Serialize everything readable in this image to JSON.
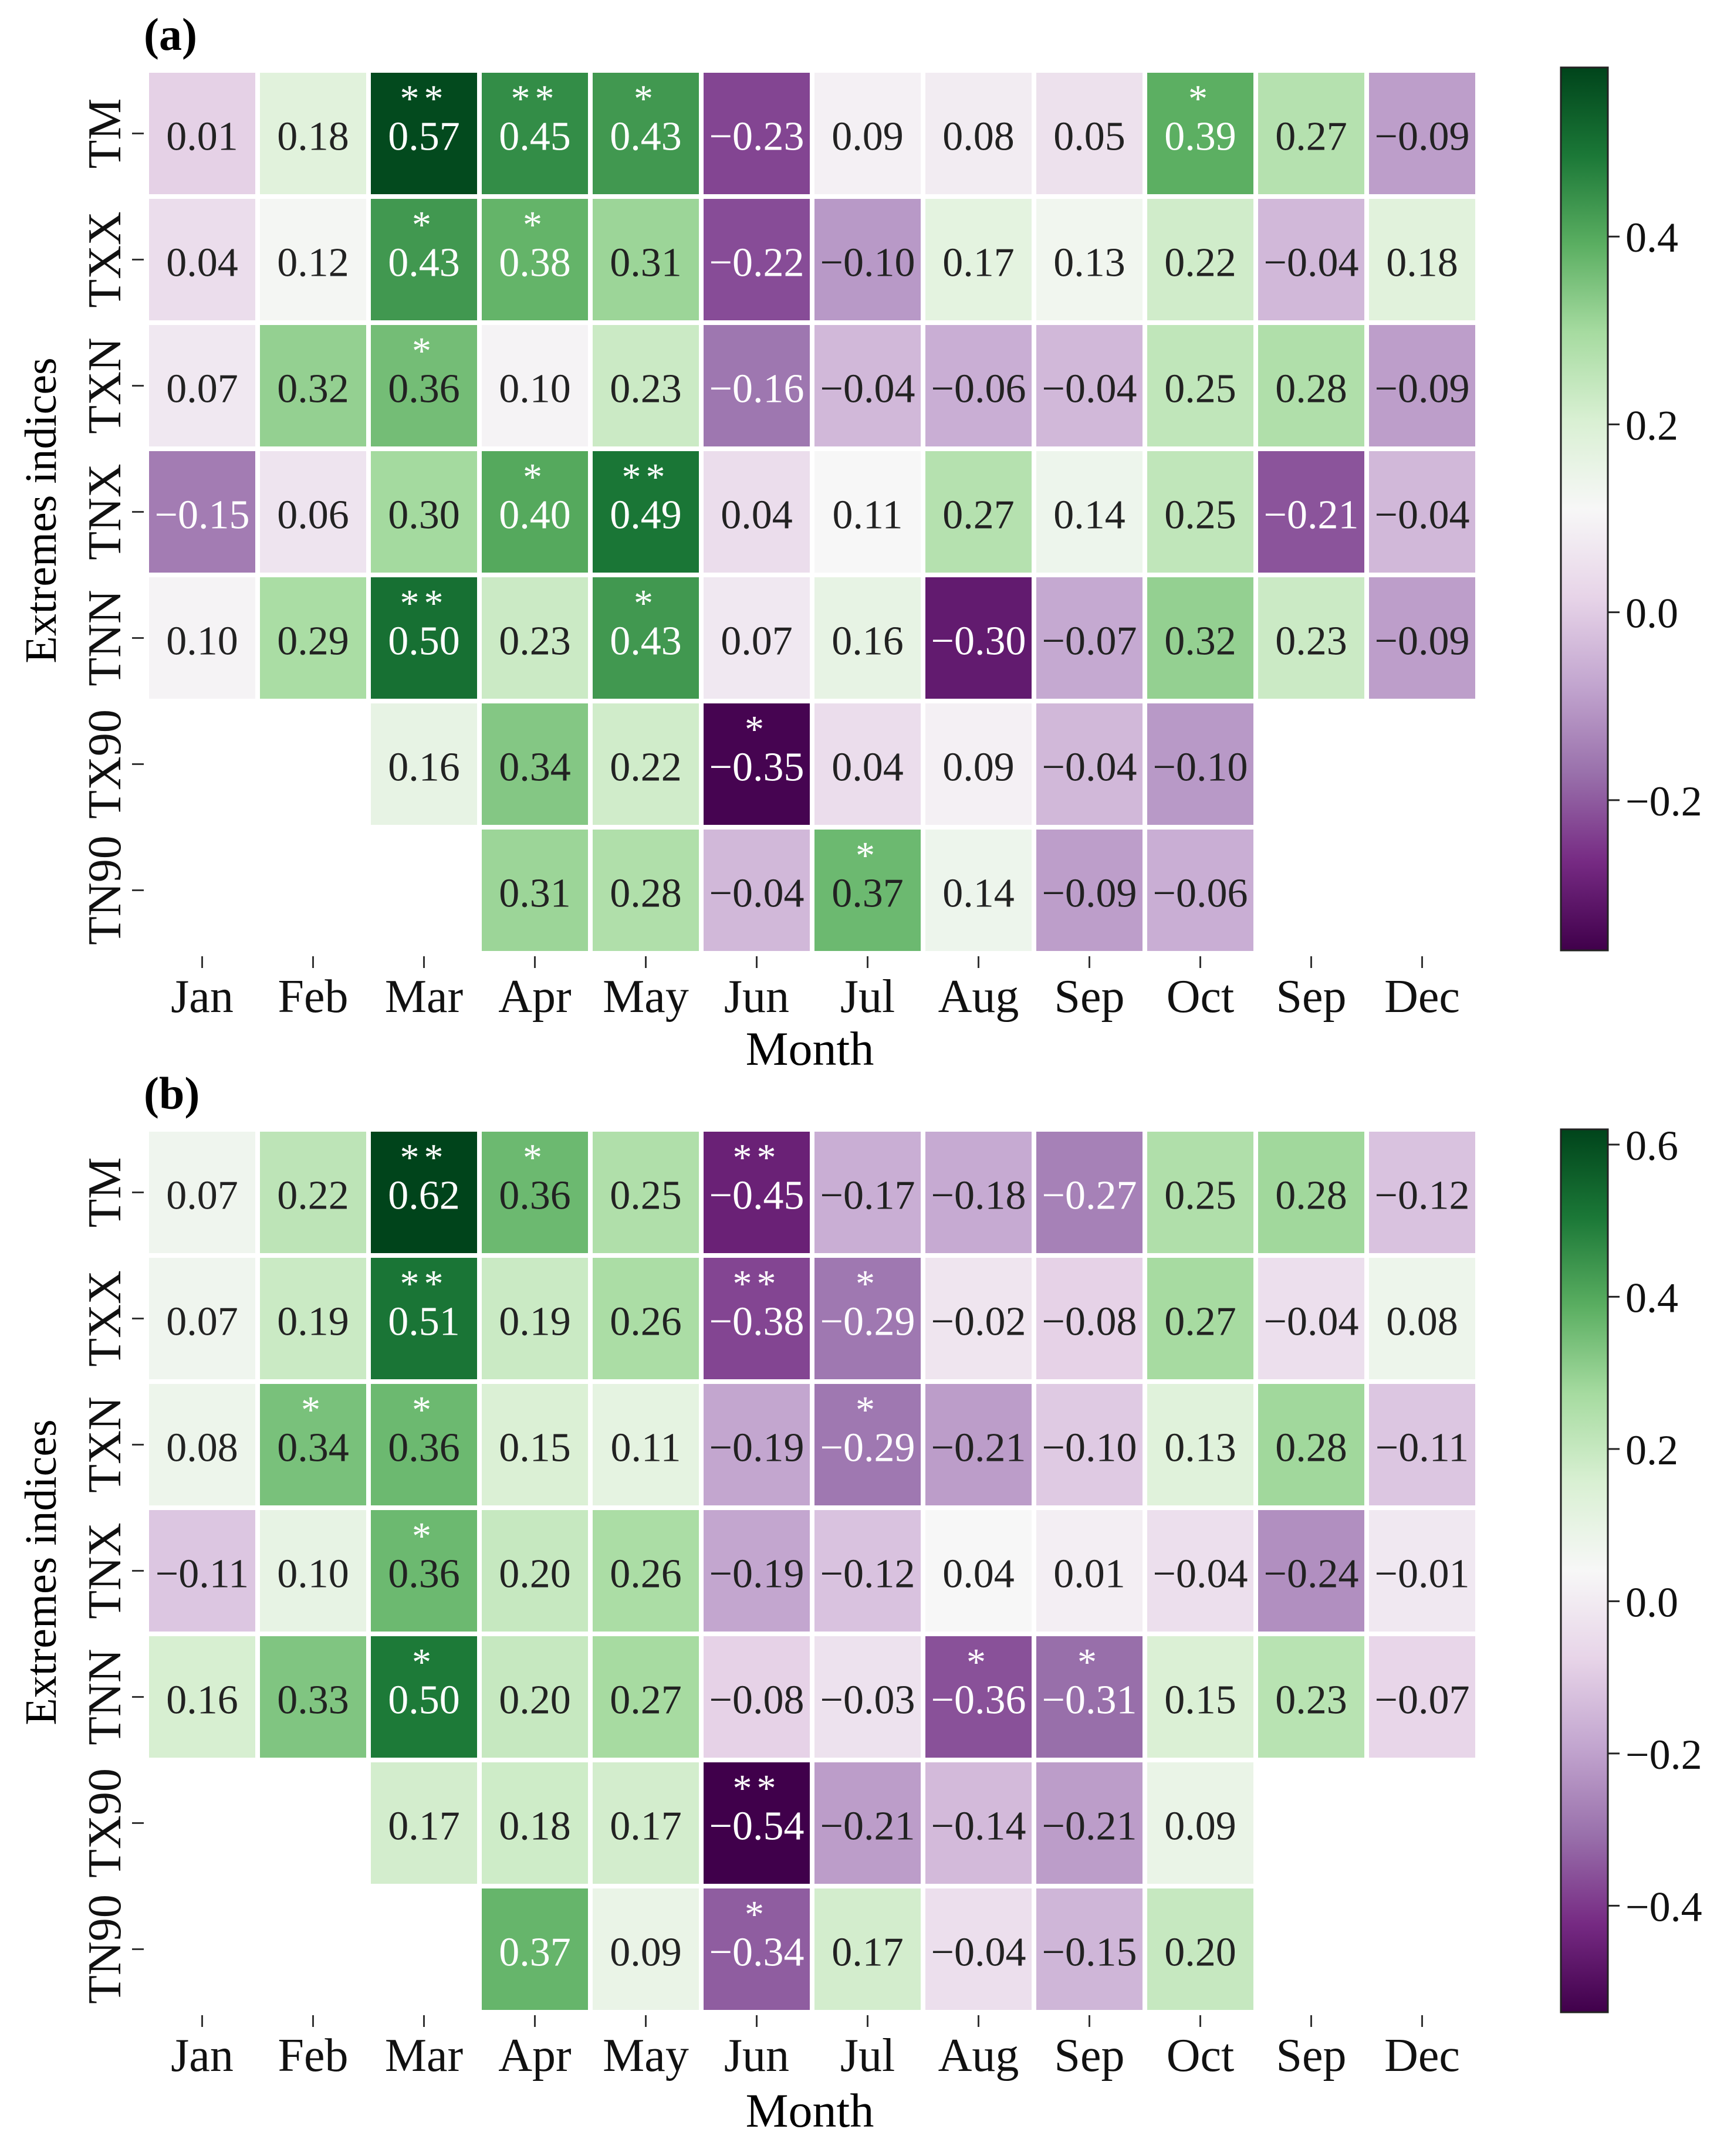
{
  "chart_data": [
    {
      "type": "heatmap",
      "panel_label": "(a)",
      "xlabel": "Month",
      "ylabel": "Extremes indices",
      "categories": [
        "Jan",
        "Feb",
        "Mar",
        "Apr",
        "May",
        "Jun",
        "Jul",
        "Aug",
        "Sep",
        "Oct",
        "Sep",
        "Dec"
      ],
      "rows": [
        "TM",
        "TXX",
        "TXN",
        "TNX",
        "TNN",
        "TX90",
        "TN90"
      ],
      "values": [
        [
          "0.01",
          "0.18",
          "0.57",
          "0.45",
          "0.43",
          "−0.23",
          "0.09",
          "0.08",
          "0.05",
          "0.39",
          "0.27",
          "−0.09"
        ],
        [
          "0.04",
          "0.12",
          "0.43",
          "0.38",
          "0.31",
          "−0.22",
          "−0.10",
          "0.17",
          "0.13",
          "0.22",
          "−0.04",
          "0.18"
        ],
        [
          "0.07",
          "0.32",
          "0.36",
          "0.10",
          "0.23",
          "−0.16",
          "−0.04",
          "−0.06",
          "−0.04",
          "0.25",
          "0.28",
          "−0.09"
        ],
        [
          "−0.15",
          "0.06",
          "0.30",
          "0.40",
          "0.49",
          "0.04",
          "0.11",
          "0.27",
          "0.14",
          "0.25",
          "−0.21",
          "−0.04"
        ],
        [
          "0.10",
          "0.29",
          "0.50",
          "0.23",
          "0.43",
          "0.07",
          "0.16",
          "−0.30",
          "−0.07",
          "0.32",
          "0.23",
          "−0.09"
        ],
        [
          null,
          null,
          "0.16",
          "0.34",
          "0.22",
          "−0.35",
          "0.04",
          "0.09",
          "−0.04",
          "−0.10",
          null,
          null
        ],
        [
          null,
          null,
          null,
          "0.31",
          "0.28",
          "−0.04",
          "0.37",
          "0.14",
          "−0.09",
          "−0.06",
          null,
          null
        ]
      ],
      "significance": [
        [
          "",
          "",
          "**",
          "**",
          "*",
          "",
          "",
          "",
          "",
          "*",
          "",
          ""
        ],
        [
          "",
          "",
          "*",
          "*",
          "",
          "",
          "",
          "",
          "",
          "",
          "",
          ""
        ],
        [
          "",
          "",
          "*",
          "",
          "",
          "",
          "",
          "",
          "",
          "",
          "",
          ""
        ],
        [
          "",
          "",
          "",
          "*",
          "**",
          "",
          "",
          "",
          "",
          "",
          "",
          ""
        ],
        [
          "",
          "",
          "**",
          "",
          "*",
          "",
          "",
          "",
          "",
          "",
          "",
          ""
        ],
        [
          "",
          "",
          "",
          "",
          "",
          "*",
          "",
          "",
          "",
          "",
          "",
          ""
        ],
        [
          "",
          "",
          "",
          "",
          "",
          "",
          "*",
          "",
          "",
          "",
          "",
          ""
        ]
      ],
      "colorbar": {
        "vmin": -0.36,
        "vmax": 0.58,
        "ticks": [
          "0.4",
          "0.2",
          "0.0",
          "−0.2"
        ],
        "tick_values": [
          0.4,
          0.2,
          0.0,
          -0.2
        ]
      }
    },
    {
      "type": "heatmap",
      "panel_label": "(b)",
      "xlabel": "Month",
      "ylabel": "Extremes indices",
      "categories": [
        "Jan",
        "Feb",
        "Mar",
        "Apr",
        "May",
        "Jun",
        "Jul",
        "Aug",
        "Sep",
        "Oct",
        "Sep",
        "Dec"
      ],
      "rows": [
        "TM",
        "TXX",
        "TXN",
        "TNX",
        "TNN",
        "TX90",
        "TN90"
      ],
      "values": [
        [
          "0.07",
          "0.22",
          "0.62",
          "0.36",
          "0.25",
          "−0.45",
          "−0.17",
          "−0.18",
          "−0.27",
          "0.25",
          "0.28",
          "−0.12"
        ],
        [
          "0.07",
          "0.19",
          "0.51",
          "0.19",
          "0.26",
          "−0.38",
          "−0.29",
          "−0.02",
          "−0.08",
          "0.27",
          "−0.04",
          "0.08"
        ],
        [
          "0.08",
          "0.34",
          "0.36",
          "0.15",
          "0.11",
          "−0.19",
          "−0.29",
          "−0.21",
          "−0.10",
          "0.13",
          "0.28",
          "−0.11"
        ],
        [
          "−0.11",
          "0.10",
          "0.36",
          "0.20",
          "0.26",
          "−0.19",
          "−0.12",
          "0.04",
          "0.01",
          "−0.04",
          "−0.24",
          "−0.01"
        ],
        [
          "0.16",
          "0.33",
          "0.50",
          "0.20",
          "0.27",
          "−0.08",
          "−0.03",
          "−0.36",
          "−0.31",
          "0.15",
          "0.23",
          "−0.07"
        ],
        [
          null,
          null,
          "0.17",
          "0.18",
          "0.17",
          "−0.54",
          "−0.21",
          "−0.14",
          "−0.21",
          "0.09",
          null,
          null
        ],
        [
          null,
          null,
          null,
          "0.37",
          "0.09",
          "−0.34",
          "0.17",
          "−0.04",
          "−0.15",
          "0.20",
          null,
          null
        ]
      ],
      "significance": [
        [
          "",
          "",
          "**",
          "*",
          "",
          "**",
          "",
          "",
          "",
          "",
          "",
          ""
        ],
        [
          "",
          "",
          "**",
          "",
          "",
          "**",
          "*",
          "",
          "",
          "",
          "",
          ""
        ],
        [
          "",
          "*",
          "*",
          "",
          "",
          "",
          "*",
          "",
          "",
          "",
          "",
          ""
        ],
        [
          "",
          "",
          "*",
          "",
          "",
          "",
          "",
          "",
          "",
          "",
          "",
          ""
        ],
        [
          "",
          "",
          "*",
          "",
          "",
          "",
          "",
          "*",
          "*",
          "",
          "",
          ""
        ],
        [
          "",
          "",
          "",
          "",
          "",
          "**",
          "",
          "",
          "",
          "",
          "",
          ""
        ],
        [
          "",
          "",
          "",
          "",
          "",
          "*",
          "",
          "",
          "",
          "",
          "",
          ""
        ]
      ],
      "colorbar": {
        "vmin": -0.54,
        "vmax": 0.62,
        "ticks": [
          "0.6",
          "0.4",
          "0.2",
          "0.0",
          "−0.2",
          "−0.4"
        ],
        "tick_values": [
          0.6,
          0.4,
          0.2,
          0.0,
          -0.2,
          -0.4
        ]
      }
    }
  ]
}
